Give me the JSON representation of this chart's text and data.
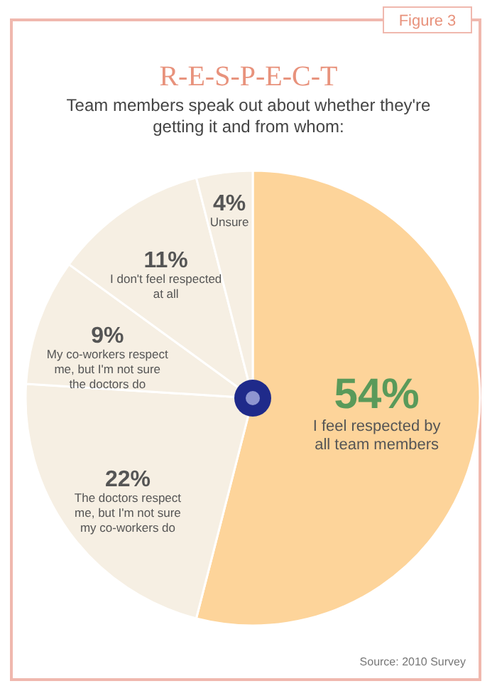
{
  "chart_data": {
    "type": "pie",
    "title": "R-E-S-P-E-C-T",
    "subtitle": "Team members speak out about whether they're getting it and from whom:",
    "categories": [
      "I feel respected by all team members",
      "The doctors respect me, but I'm not sure my co-workers do",
      "My co-workers respect me, but I'm not sure the doctors do",
      "I don't feel respected at all",
      "Unsure"
    ],
    "values": [
      54,
      22,
      9,
      11,
      4
    ],
    "value_labels": [
      "54%",
      "22%",
      "9%",
      "11%",
      "4%"
    ],
    "colors": [
      "#fdd49a",
      "#f6efe3",
      "#f6efe3",
      "#f6efe3",
      "#f6efe3"
    ],
    "annotations": [
      "Figure 3",
      "Source: 2010 Survey"
    ]
  }
}
